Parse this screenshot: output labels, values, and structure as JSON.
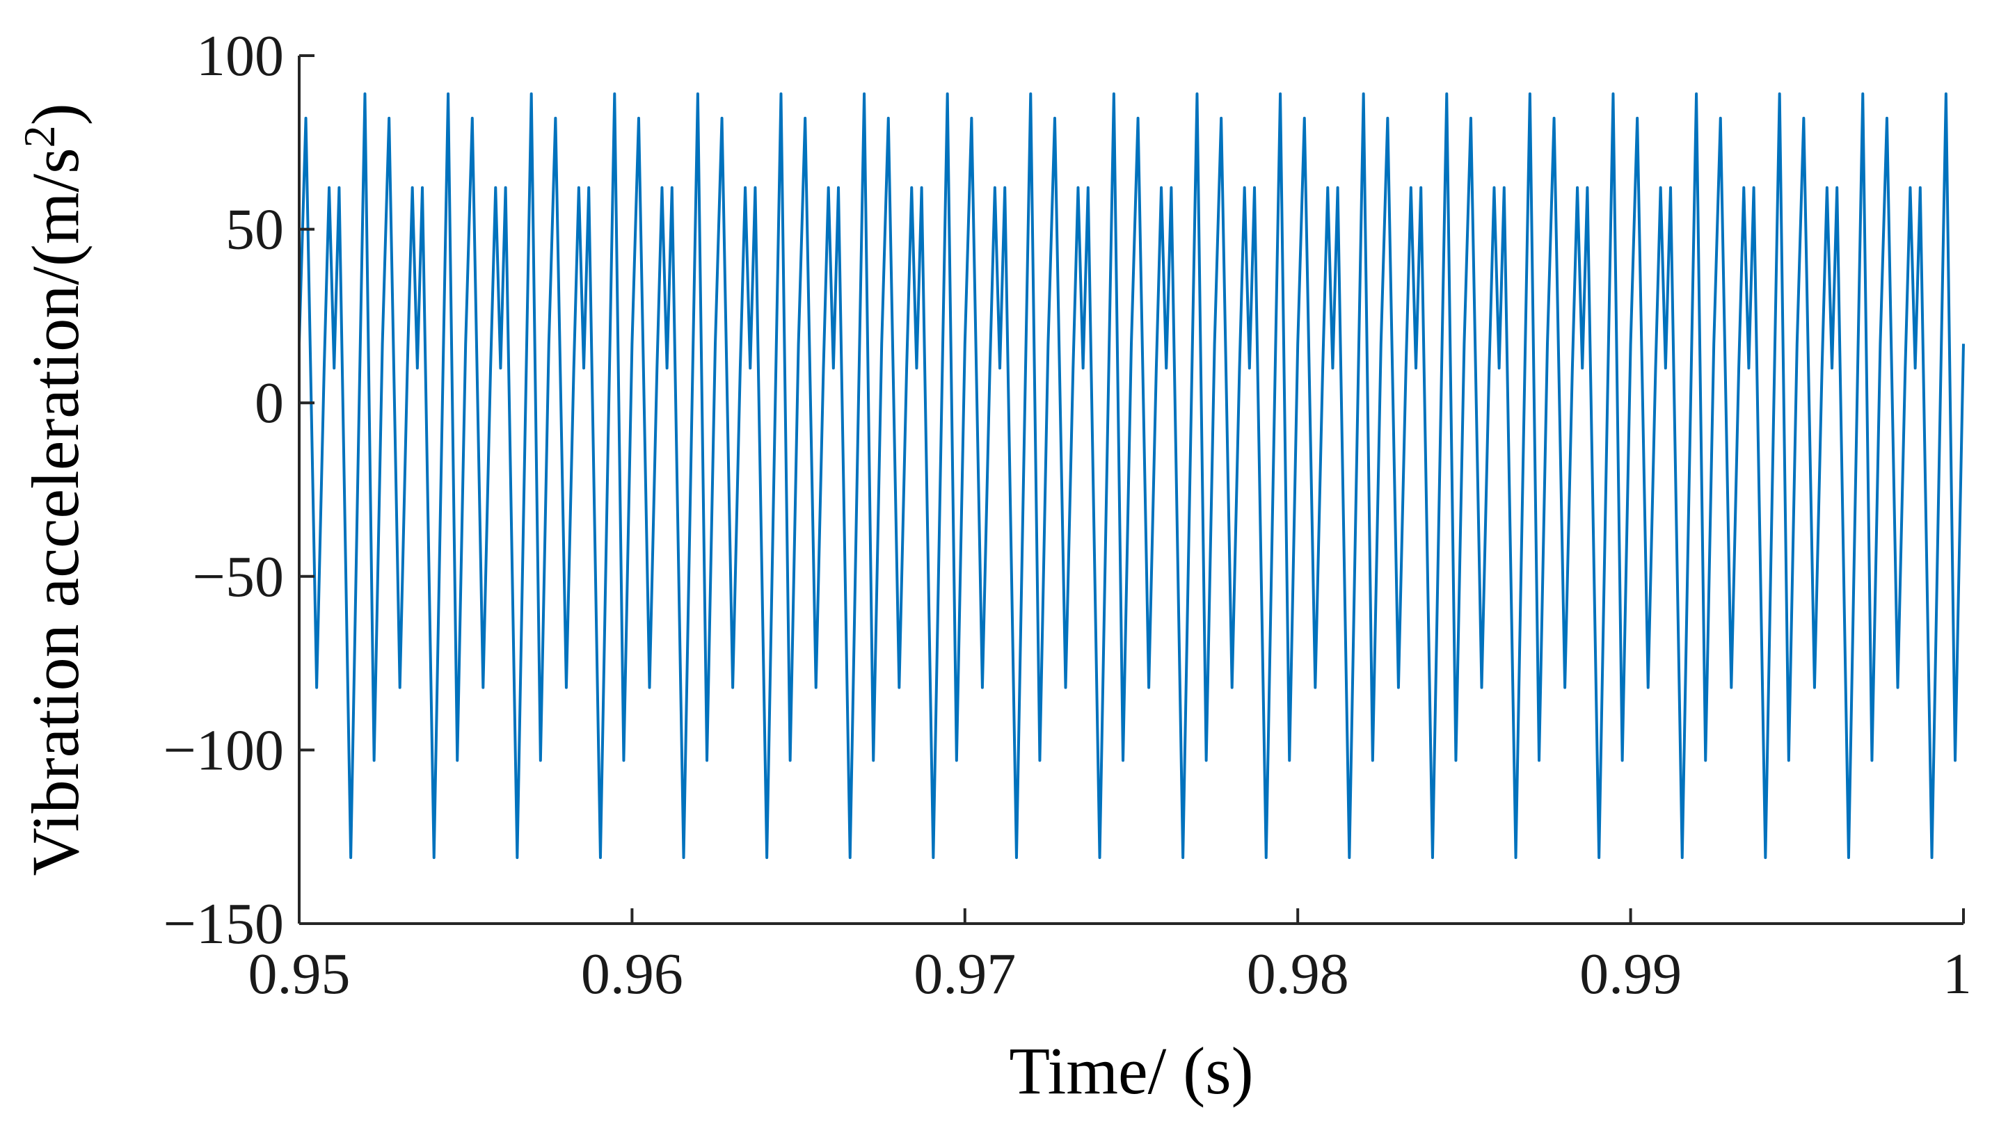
{
  "chart_data": {
    "type": "line",
    "title": "",
    "xlabel": "Time/ (s)",
    "ylabel_main": "Vibration acceleration/(m/s",
    "ylabel_sup": "2",
    "ylabel_close": ")",
    "xlim": [
      0.95,
      1.0
    ],
    "ylim": [
      -150,
      100
    ],
    "xticks": [
      0.95,
      0.96,
      0.97,
      0.98,
      0.99,
      1.0
    ],
    "xtick_labels": [
      "0.95",
      "0.96",
      "0.97",
      "0.98",
      "0.99",
      "1"
    ],
    "yticks": [
      -150,
      -100,
      -50,
      0,
      50,
      100
    ],
    "ytick_labels": [
      "−150",
      "−100",
      "−50",
      "0",
      "50",
      "100"
    ],
    "grid": false,
    "legend": false,
    "line_color": "#0072BD",
    "series": [
      {
        "period_s": 0.0025,
        "x_start": 0.95,
        "x_end": 1.0,
        "cycle_shape": [
          {
            "t": 0.0,
            "y": 17
          },
          {
            "t": 0.08,
            "y": 82
          },
          {
            "t": 0.21,
            "y": -82
          },
          {
            "t": 0.3,
            "y": 10
          },
          {
            "t": 0.36,
            "y": 62
          },
          {
            "t": 0.42,
            "y": 10
          },
          {
            "t": 0.48,
            "y": 62
          },
          {
            "t": 0.62,
            "y": -131
          },
          {
            "t": 0.79,
            "y": 89
          },
          {
            "t": 0.9,
            "y": -103
          },
          {
            "t": 1.0,
            "y": 17
          }
        ]
      }
    ]
  }
}
